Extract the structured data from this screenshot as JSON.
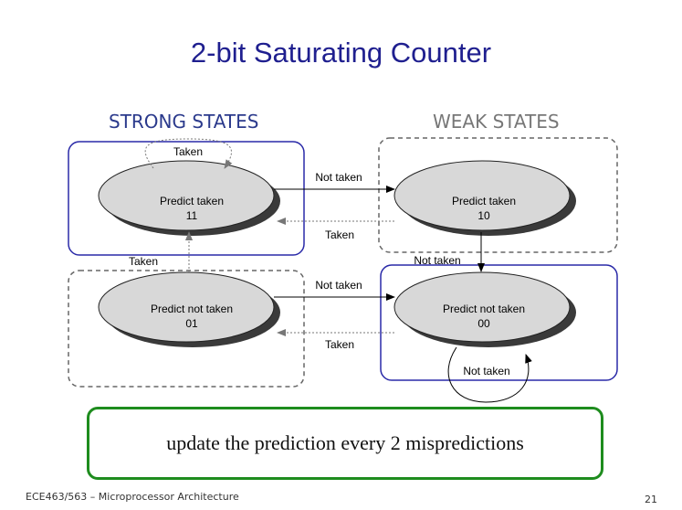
{
  "slide": {
    "title": "2-bit Saturating Counter",
    "strong_label": "STRONG STATES",
    "weak_label": "WEAK STATES",
    "callout": "update the prediction every 2 mispredictions",
    "footer": "ECE463/563 – Microprocessor Architecture",
    "page_number": "21"
  },
  "states": {
    "s11": {
      "label": "Predict taken",
      "code": "11"
    },
    "s10": {
      "label": "Predict taken",
      "code": "10"
    },
    "s01": {
      "label": "Predict not taken",
      "code": "01"
    },
    "s00": {
      "label": "Predict not taken",
      "code": "00"
    }
  },
  "transitions": {
    "t11_self": "Taken",
    "t11_to_10": "Not taken",
    "t10_to_11": "Taken",
    "t01_to_11": "Taken",
    "t10_to_00": "Not taken",
    "t01_to_00": "Not taken",
    "t00_to_01": "Taken",
    "t00_self": "Not taken"
  },
  "colors": {
    "title": "#1f1f8f",
    "strong_box": "#2a2aa8",
    "weak_box": "#666666",
    "callout_border": "#1e8c1e",
    "state_fill": "#d8d8d8"
  }
}
